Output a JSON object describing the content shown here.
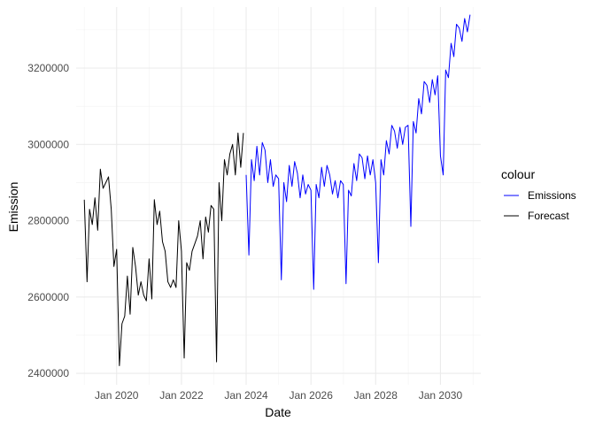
{
  "chart_data": {
    "type": "line",
    "title": "",
    "xlabel": "Date",
    "ylabel": "Emission",
    "x_unit": "date",
    "xlim": [
      "2018-10-01",
      "2031-04-01"
    ],
    "ylim": [
      2370000,
      3360000
    ],
    "x_ticks": [
      {
        "value": "2020-01-01",
        "label": "Jan 2020"
      },
      {
        "value": "2022-01-01",
        "label": "Jan 2022"
      },
      {
        "value": "2024-01-01",
        "label": "Jan 2024"
      },
      {
        "value": "2026-01-01",
        "label": "Jan 2026"
      },
      {
        "value": "2028-01-01",
        "label": "Jan 2028"
      },
      {
        "value": "2030-01-01",
        "label": "Jan 2030"
      }
    ],
    "y_ticks": [
      {
        "value": 2400000,
        "label": "2400000"
      },
      {
        "value": 2600000,
        "label": "2600000"
      },
      {
        "value": 2800000,
        "label": "2800000"
      },
      {
        "value": 3000000,
        "label": "3000000"
      },
      {
        "value": 3200000,
        "label": "3200000"
      }
    ],
    "grid": true,
    "legend": {
      "title": "colour",
      "placement": "right"
    },
    "series": [
      {
        "name": "Forecast",
        "color": "#000000",
        "points": [
          [
            "2019-01-01",
            2855000
          ],
          [
            "2019-02-01",
            2640000
          ],
          [
            "2019-03-01",
            2830000
          ],
          [
            "2019-04-01",
            2790000
          ],
          [
            "2019-05-01",
            2860000
          ],
          [
            "2019-06-01",
            2775000
          ],
          [
            "2019-07-01",
            2935000
          ],
          [
            "2019-08-01",
            2885000
          ],
          [
            "2019-09-01",
            2900000
          ],
          [
            "2019-10-01",
            2915000
          ],
          [
            "2019-11-01",
            2830000
          ],
          [
            "2019-12-01",
            2680000
          ],
          [
            "2020-01-01",
            2725000
          ],
          [
            "2020-02-01",
            2420000
          ],
          [
            "2020-03-01",
            2530000
          ],
          [
            "2020-04-01",
            2550000
          ],
          [
            "2020-05-01",
            2655000
          ],
          [
            "2020-06-01",
            2555000
          ],
          [
            "2020-07-01",
            2730000
          ],
          [
            "2020-08-01",
            2680000
          ],
          [
            "2020-09-01",
            2605000
          ],
          [
            "2020-10-01",
            2640000
          ],
          [
            "2020-11-01",
            2605000
          ],
          [
            "2020-12-01",
            2590000
          ],
          [
            "2021-01-01",
            2700000
          ],
          [
            "2021-02-01",
            2595000
          ],
          [
            "2021-03-01",
            2855000
          ],
          [
            "2021-04-01",
            2790000
          ],
          [
            "2021-05-01",
            2825000
          ],
          [
            "2021-06-01",
            2745000
          ],
          [
            "2021-07-01",
            2720000
          ],
          [
            "2021-08-01",
            2640000
          ],
          [
            "2021-09-01",
            2625000
          ],
          [
            "2021-10-01",
            2645000
          ],
          [
            "2021-11-01",
            2625000
          ],
          [
            "2021-12-01",
            2800000
          ],
          [
            "2022-01-01",
            2720000
          ],
          [
            "2022-02-01",
            2440000
          ],
          [
            "2022-03-01",
            2690000
          ],
          [
            "2022-04-01",
            2670000
          ],
          [
            "2022-05-01",
            2720000
          ],
          [
            "2022-06-01",
            2740000
          ],
          [
            "2022-07-01",
            2760000
          ],
          [
            "2022-08-01",
            2800000
          ],
          [
            "2022-09-01",
            2700000
          ],
          [
            "2022-10-01",
            2810000
          ],
          [
            "2022-11-01",
            2770000
          ],
          [
            "2022-12-01",
            2840000
          ],
          [
            "2023-01-01",
            2830000
          ],
          [
            "2023-02-01",
            2430000
          ],
          [
            "2023-03-01",
            2900000
          ],
          [
            "2023-04-01",
            2800000
          ],
          [
            "2023-05-01",
            2960000
          ],
          [
            "2023-06-01",
            2920000
          ],
          [
            "2023-07-01",
            2975000
          ],
          [
            "2023-08-01",
            3000000
          ],
          [
            "2023-09-01",
            2920000
          ],
          [
            "2023-10-01",
            3030000
          ],
          [
            "2023-11-01",
            2940000
          ],
          [
            "2023-12-01",
            3030000
          ]
        ]
      },
      {
        "name": "Emissions",
        "color": "#0000ff",
        "points": [
          [
            "2024-01-01",
            2920000
          ],
          [
            "2024-02-01",
            2710000
          ],
          [
            "2024-03-01",
            2960000
          ],
          [
            "2024-04-01",
            2905000
          ],
          [
            "2024-05-01",
            2995000
          ],
          [
            "2024-06-01",
            2920000
          ],
          [
            "2024-07-01",
            3005000
          ],
          [
            "2024-08-01",
            2985000
          ],
          [
            "2024-09-01",
            2900000
          ],
          [
            "2024-10-01",
            2960000
          ],
          [
            "2024-11-01",
            2890000
          ],
          [
            "2024-12-01",
            2920000
          ],
          [
            "2025-01-01",
            2910000
          ],
          [
            "2025-02-01",
            2645000
          ],
          [
            "2025-03-01",
            2900000
          ],
          [
            "2025-04-01",
            2850000
          ],
          [
            "2025-05-01",
            2945000
          ],
          [
            "2025-06-01",
            2890000
          ],
          [
            "2025-07-01",
            2955000
          ],
          [
            "2025-08-01",
            2925000
          ],
          [
            "2025-09-01",
            2860000
          ],
          [
            "2025-10-01",
            2920000
          ],
          [
            "2025-11-01",
            2870000
          ],
          [
            "2025-12-01",
            2895000
          ],
          [
            "2026-01-01",
            2880000
          ],
          [
            "2026-02-01",
            2620000
          ],
          [
            "2026-03-01",
            2895000
          ],
          [
            "2026-04-01",
            2860000
          ],
          [
            "2026-05-01",
            2940000
          ],
          [
            "2026-06-01",
            2890000
          ],
          [
            "2026-07-01",
            2945000
          ],
          [
            "2026-08-01",
            2920000
          ],
          [
            "2026-09-01",
            2870000
          ],
          [
            "2026-10-01",
            2905000
          ],
          [
            "2026-11-01",
            2860000
          ],
          [
            "2026-12-01",
            2905000
          ],
          [
            "2027-01-01",
            2895000
          ],
          [
            "2027-02-01",
            2635000
          ],
          [
            "2027-03-01",
            2880000
          ],
          [
            "2027-04-01",
            2865000
          ],
          [
            "2027-05-01",
            2950000
          ],
          [
            "2027-06-01",
            2905000
          ],
          [
            "2027-07-01",
            2975000
          ],
          [
            "2027-08-01",
            2965000
          ],
          [
            "2027-09-01",
            2910000
          ],
          [
            "2027-10-01",
            2970000
          ],
          [
            "2027-11-01",
            2920000
          ],
          [
            "2027-12-01",
            2960000
          ],
          [
            "2028-01-01",
            2900000
          ],
          [
            "2028-02-01",
            2690000
          ],
          [
            "2028-03-01",
            2960000
          ],
          [
            "2028-04-01",
            2920000
          ],
          [
            "2028-05-01",
            3010000
          ],
          [
            "2028-06-01",
            2975000
          ],
          [
            "2028-07-01",
            3050000
          ],
          [
            "2028-08-01",
            3035000
          ],
          [
            "2028-09-01",
            2990000
          ],
          [
            "2028-10-01",
            3045000
          ],
          [
            "2028-11-01",
            3000000
          ],
          [
            "2028-12-01",
            3045000
          ],
          [
            "2029-01-01",
            3050000
          ],
          [
            "2029-02-01",
            2785000
          ],
          [
            "2029-03-01",
            3060000
          ],
          [
            "2029-04-01",
            3030000
          ],
          [
            "2029-05-01",
            3120000
          ],
          [
            "2029-06-01",
            3080000
          ],
          [
            "2029-07-01",
            3165000
          ],
          [
            "2029-08-01",
            3155000
          ],
          [
            "2029-09-01",
            3110000
          ],
          [
            "2029-10-01",
            3170000
          ],
          [
            "2029-11-01",
            3130000
          ],
          [
            "2029-12-01",
            3180000
          ],
          [
            "2030-01-01",
            2970000
          ],
          [
            "2030-02-01",
            2920000
          ],
          [
            "2030-03-01",
            3195000
          ],
          [
            "2030-04-01",
            3175000
          ],
          [
            "2030-05-01",
            3265000
          ],
          [
            "2030-06-01",
            3230000
          ],
          [
            "2030-07-01",
            3315000
          ],
          [
            "2030-08-01",
            3305000
          ],
          [
            "2030-09-01",
            3270000
          ],
          [
            "2030-10-01",
            3330000
          ],
          [
            "2030-11-01",
            3295000
          ],
          [
            "2030-12-01",
            3340000
          ]
        ]
      }
    ]
  }
}
